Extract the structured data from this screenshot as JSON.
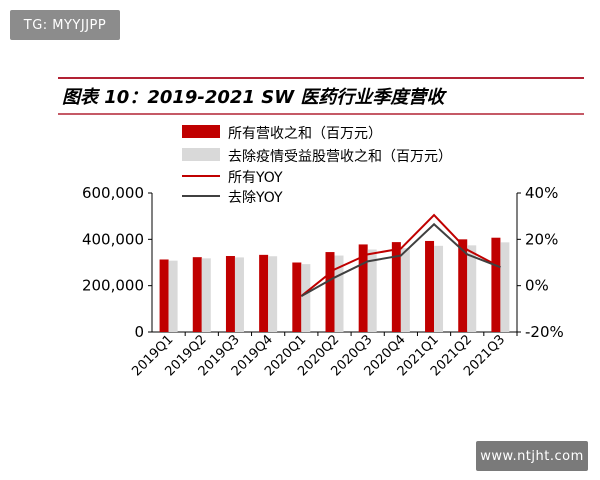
{
  "watermarks": {
    "top_left": "TG: MYYJJPP",
    "bottom_right": "www.ntjht.com"
  },
  "colors": {
    "accent_red": "#c00000",
    "bar_gray": "#d9d9d9",
    "line_dark": "#404040",
    "title_rule": "#b22234",
    "axis": "#000000"
  },
  "chart_data": {
    "type": "bar",
    "title": "图表 10：2019-2021 SW 医药行业季度营收",
    "categories": [
      "2019Q1",
      "2019Q2",
      "2019Q3",
      "2019Q4",
      "2020Q1",
      "2020Q2",
      "2020Q3",
      "2020Q4",
      "2021Q1",
      "2021Q2",
      "2021Q3"
    ],
    "series": [
      {
        "name": "所有营收之和（百万元）",
        "kind": "bar",
        "axis": "left",
        "color": "#c00000",
        "values": [
          313000,
          323000,
          328000,
          333000,
          300000,
          345000,
          378000,
          388000,
          393000,
          400000,
          407000
        ]
      },
      {
        "name": "去除疫情受益股营收之和（百万元）",
        "kind": "bar",
        "axis": "left",
        "color": "#d9d9d9",
        "values": [
          308000,
          318000,
          322000,
          327000,
          293000,
          330000,
          356000,
          362000,
          372000,
          374000,
          387000
        ]
      },
      {
        "name": "所有YOY",
        "kind": "line",
        "axis": "right",
        "color": "#c00000",
        "x": [
          "2020Q1",
          "2020Q2",
          "2020Q3",
          "2020Q4",
          "2021Q1",
          "2021Q2",
          "2021Q3"
        ],
        "values": [
          -4.5,
          7.0,
          13.5,
          16.0,
          30.5,
          15.5,
          8.0
        ]
      },
      {
        "name": "去除YOY",
        "kind": "line",
        "axis": "right",
        "color": "#404040",
        "x": [
          "2020Q1",
          "2020Q2",
          "2020Q3",
          "2020Q4",
          "2021Q1",
          "2021Q2",
          "2021Q3"
        ],
        "values": [
          -4.5,
          3.5,
          10.5,
          13.0,
          26.5,
          13.5,
          8.0
        ]
      }
    ],
    "y_left": {
      "ylim": [
        0,
        600000
      ],
      "ticks": [
        0,
        200000,
        400000,
        600000
      ],
      "tick_labels": [
        "0",
        "200,000",
        "400,000",
        "600,000"
      ]
    },
    "y_right": {
      "ylim": [
        -20,
        40
      ],
      "ticks": [
        -20,
        0,
        20,
        40
      ],
      "tick_labels": [
        "-20%",
        "0%",
        "20%",
        "40%"
      ]
    },
    "grid": false,
    "legend_position": "top-left"
  }
}
